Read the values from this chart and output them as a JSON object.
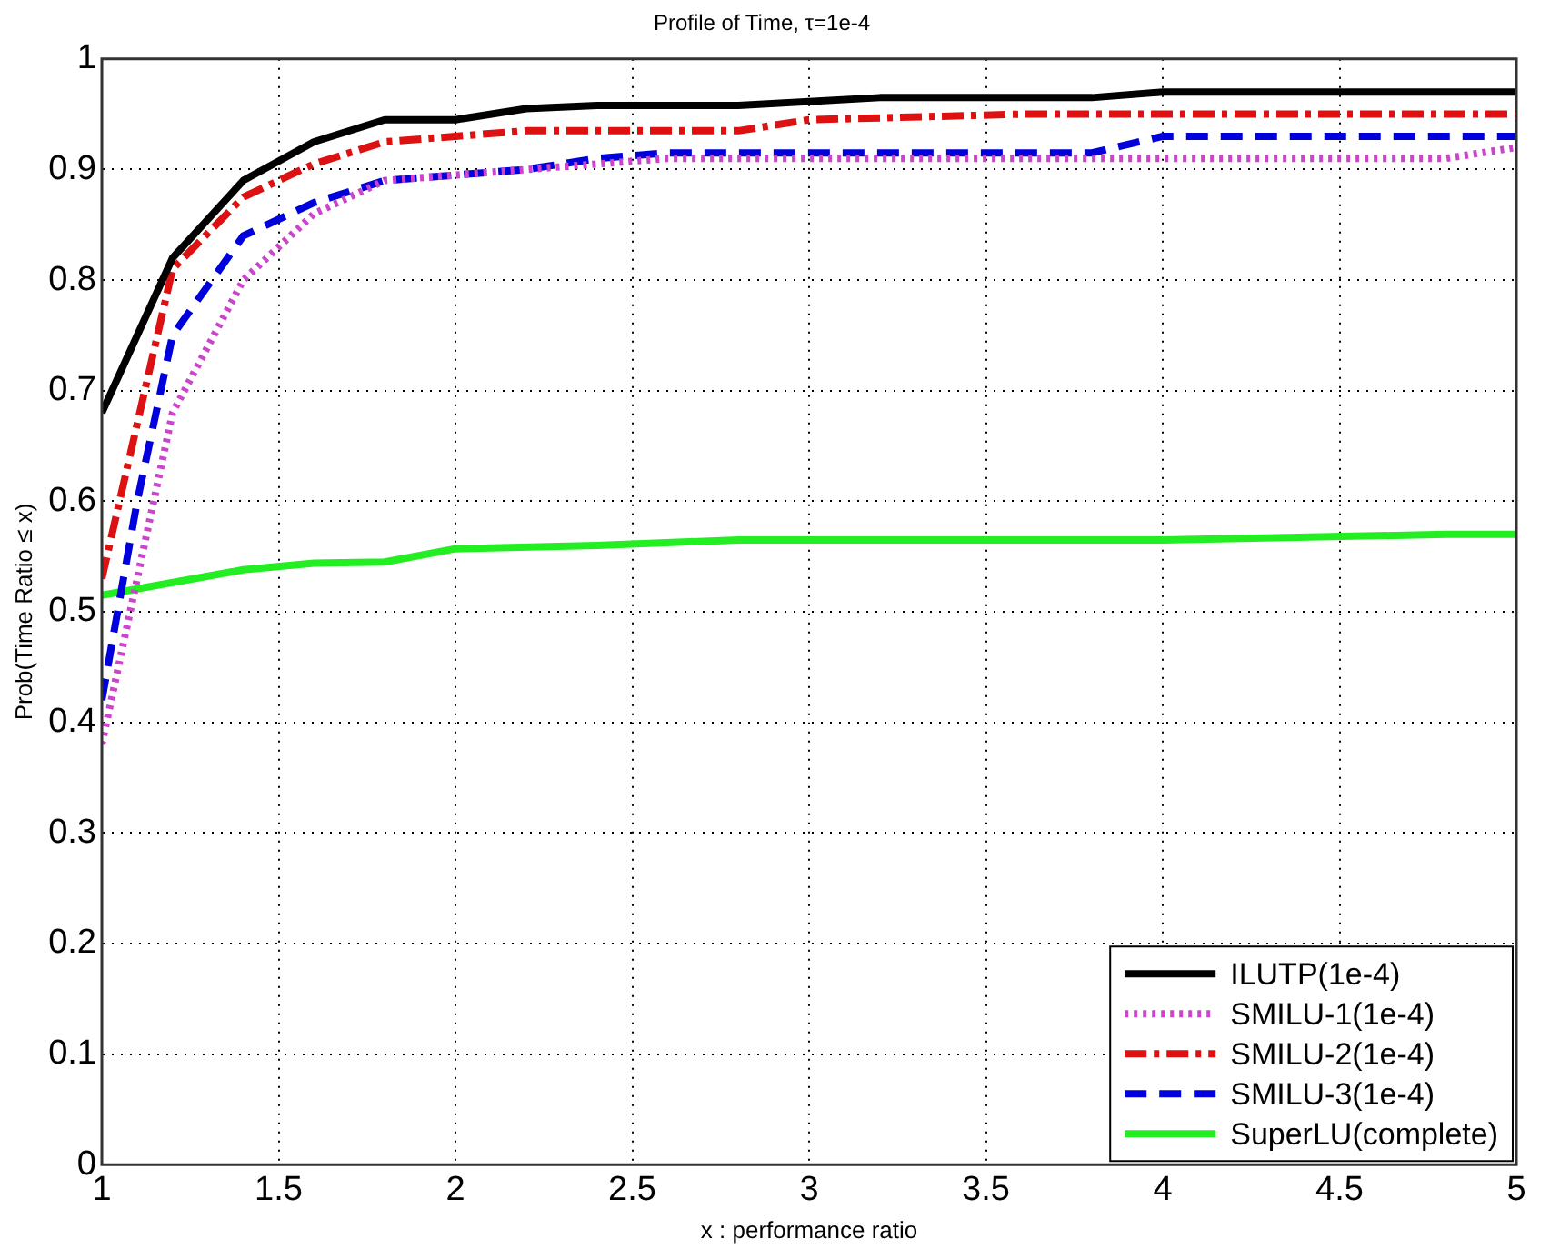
{
  "chart_data": {
    "type": "line",
    "title": "Profile of Time, τ=1e-4",
    "xlabel": "x : performance ratio",
    "ylabel": "Prob(Time Ratio ≤ x)",
    "xlim": [
      1,
      5
    ],
    "xticks": [
      1,
      1.5,
      2,
      2.5,
      3,
      3.5,
      4,
      4.5,
      5
    ],
    "ylim": [
      0,
      1
    ],
    "yticks": [
      0,
      0.1,
      0.2,
      0.3,
      0.4,
      0.5,
      0.6,
      0.7,
      0.8,
      0.9,
      1
    ],
    "grid": true,
    "legend": "bottom right",
    "marker": "none",
    "series": [
      {
        "name": "ILUTP(1e-4)",
        "color": "#000000",
        "line_style": "solid",
        "x": [
          1,
          1.2,
          1.4,
          1.6,
          1.8,
          2,
          2.2,
          2.4,
          2.8,
          3.2,
          3.8,
          4,
          5
        ],
        "values": [
          0.68,
          0.82,
          0.89,
          0.925,
          0.945,
          0.945,
          0.955,
          0.958,
          0.958,
          0.965,
          0.965,
          0.97,
          0.97
        ]
      },
      {
        "name": "SMILU-1(1e-4)",
        "color": "#cc44cc",
        "line_style": "dotted",
        "x": [
          1,
          1.2,
          1.4,
          1.6,
          1.8,
          2,
          2.4,
          2.6,
          4.8,
          5
        ],
        "values": [
          0.38,
          0.68,
          0.8,
          0.86,
          0.89,
          0.895,
          0.905,
          0.91,
          0.91,
          0.92
        ]
      },
      {
        "name": "SMILU-2(1e-4)",
        "color": "#dd1111",
        "line_style": "dashdot",
        "x": [
          1,
          1.2,
          1.4,
          1.6,
          1.8,
          2,
          2.2,
          2.8,
          3,
          3.6,
          5
        ],
        "values": [
          0.53,
          0.81,
          0.875,
          0.905,
          0.925,
          0.93,
          0.935,
          0.935,
          0.945,
          0.95,
          0.95
        ]
      },
      {
        "name": "SMILU-3(1e-4)",
        "color": "#0000dd",
        "line_style": "dashed",
        "x": [
          1,
          1.1,
          1.2,
          1.4,
          1.6,
          1.8,
          2,
          2.2,
          2.4,
          2.6,
          3.8,
          4,
          5
        ],
        "values": [
          0.42,
          0.6,
          0.75,
          0.84,
          0.87,
          0.89,
          0.895,
          0.9,
          0.91,
          0.915,
          0.915,
          0.93,
          0.93
        ]
      },
      {
        "name": "SuperLU(complete)",
        "color": "#22ee22",
        "line_style": "solid",
        "x": [
          1,
          1.4,
          1.6,
          1.8,
          2,
          2.4,
          2.8,
          4,
          4.8,
          5
        ],
        "values": [
          0.515,
          0.538,
          0.544,
          0.545,
          0.557,
          0.56,
          0.565,
          0.565,
          0.57,
          0.57
        ]
      }
    ]
  }
}
